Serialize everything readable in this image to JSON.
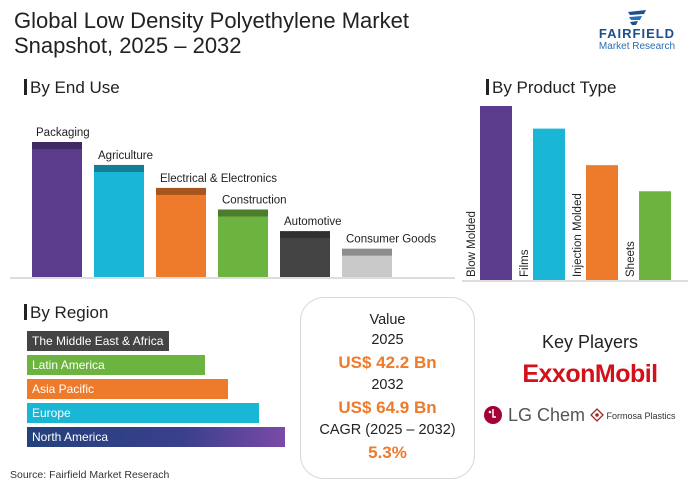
{
  "title": {
    "line1": "Global Low Density Polyethylene Market",
    "line2": "Snapshot, 2025 – 2032"
  },
  "brand": {
    "name": "FAIRFIELD",
    "sub": "Market Research",
    "color": "#1d4f8c"
  },
  "source": "Source: Fairfield Market Reserach",
  "sections": {
    "end_use": "By End Use",
    "product_type": "By Product Type",
    "region": "By Region"
  },
  "value_box": {
    "heading": "Value",
    "year1": "2025",
    "value1": "US$ 42.2 Bn",
    "year2": "2032",
    "value2": "US$ 64.9 Bn",
    "cagr_label": "CAGR (2025 – 2032)",
    "cagr_value": "5.3%",
    "accent": "#ee7a2b"
  },
  "key_players": {
    "title": "Key Players",
    "players": [
      "ExxonMobil",
      "LG Chem",
      "Formosa Plastics"
    ]
  },
  "chart_data": [
    {
      "type": "bar",
      "title": "By End Use",
      "categories": [
        "Packaging",
        "Agriculture",
        "Electrical & Electronics",
        "Construction",
        "Automotive",
        "Consumer Goods"
      ],
      "values": [
        100,
        83,
        66,
        50,
        34,
        21
      ],
      "colors": [
        "#5b3b8c",
        "#1ab6d6",
        "#ee7a2b",
        "#6cb33f",
        "#444444",
        "#c9c9c9"
      ],
      "axes_visible": false
    },
    {
      "type": "bar",
      "title": "By Product Type",
      "categories": [
        "Blow Molded",
        "Films",
        "Injection Molded",
        "Sheets"
      ],
      "values": [
        100,
        87,
        66,
        51
      ],
      "colors": [
        "#5b3b8c",
        "#1ab6d6",
        "#ee7a2b",
        "#6cb33f"
      ],
      "axes_visible": false
    },
    {
      "type": "bar",
      "orientation": "horizontal",
      "title": "By Region",
      "categories": [
        "The Middle East & Africa",
        "Latin America",
        "Asia Pacific",
        "Europe",
        "North America"
      ],
      "values": [
        55,
        69,
        78,
        90,
        100
      ],
      "colors": [
        "#444444",
        "#6cb33f",
        "#ee7a2b",
        "#1ab6d6",
        "#3b3b8c"
      ],
      "axes_visible": false
    }
  ]
}
